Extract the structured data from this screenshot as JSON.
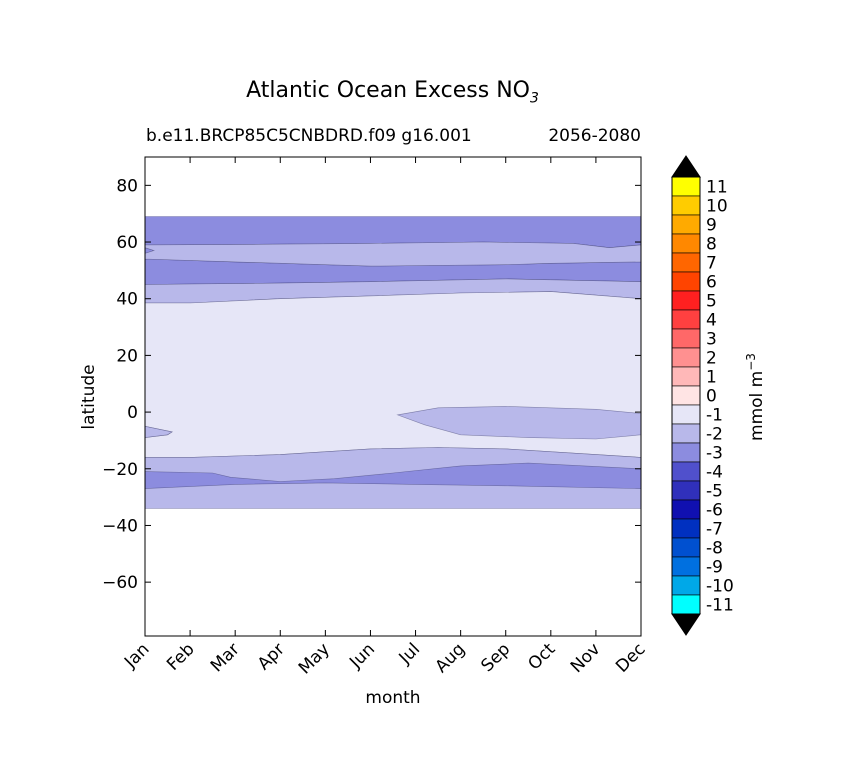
{
  "chart_data": {
    "type": "heatmap",
    "title": "Atlantic Ocean Excess NO",
    "title_subscript": "3",
    "subtitle_left": "b.e11.BRCP85C5CNBDRD.f09 g16.001",
    "subtitle_right": "2056-2080",
    "xlabel": "month",
    "ylabel": "latitude",
    "colorbar_label": "mmol m",
    "colorbar_label_superscript": "−3",
    "x_categories": [
      "Jan",
      "Feb",
      "Mar",
      "Apr",
      "May",
      "Jun",
      "Jul",
      "Aug",
      "Sep",
      "Oct",
      "Nov",
      "Dec"
    ],
    "y_ticks": [
      80,
      60,
      40,
      20,
      0,
      -20,
      -40,
      -60
    ],
    "y_tick_labels": [
      "80",
      "60",
      "40",
      "20",
      "0",
      "−20",
      "−40",
      "−60"
    ],
    "ylim": [
      -79,
      90
    ],
    "xlim": [
      0,
      11
    ],
    "data_extent_lat": [
      -34,
      69
    ],
    "colorbar_levels": [
      "11",
      "10",
      "9",
      "8",
      "7",
      "6",
      "5",
      "4",
      "3",
      "2",
      "1",
      "0",
      "-1",
      "-2",
      "-3",
      "-4",
      "-5",
      "-6",
      "-7",
      "-8",
      "-9",
      "-10",
      "-11"
    ],
    "colorbar_colors": [
      "#ffff00",
      "#ffcc00",
      "#ffaa00",
      "#ff8800",
      "#ff6600",
      "#ff4400",
      "#ff2020",
      "#ff4040",
      "#ff6868",
      "#ff9090",
      "#ffb8b8",
      "#ffe4e4",
      "#e6e6f7",
      "#b8b8ea",
      "#8c8cdf",
      "#5050cc",
      "#3030bb",
      "#1010b0",
      "#0030c0",
      "#0050d0",
      "#0070e0",
      "#00a8e8",
      "#00ffff"
    ],
    "contour_bands": [
      {
        "level": "-3",
        "polygon": [
          [
            0,
            69
          ],
          [
            11,
            69
          ],
          [
            11,
            59
          ],
          [
            10.3,
            58
          ],
          [
            9.5,
            59.5
          ],
          [
            7.5,
            60
          ],
          [
            5,
            59.5
          ],
          [
            2.5,
            59.2
          ],
          [
            0,
            59
          ],
          [
            0,
            58
          ],
          [
            0.2,
            57
          ],
          [
            0,
            56
          ],
          [
            0,
            54
          ],
          [
            2,
            53
          ],
          [
            4,
            52
          ],
          [
            5,
            51.5
          ],
          [
            8,
            52
          ],
          [
            9,
            52.5
          ],
          [
            11,
            53
          ],
          [
            11,
            46
          ],
          [
            8,
            47
          ],
          [
            5,
            46
          ],
          [
            3,
            45.5
          ],
          [
            0,
            45
          ]
        ]
      },
      {
        "level": "-2",
        "polygon": [
          [
            0,
            59
          ],
          [
            2.5,
            59.2
          ],
          [
            5,
            59.5
          ],
          [
            7.5,
            60
          ],
          [
            9.5,
            59.5
          ],
          [
            10.3,
            58
          ],
          [
            11,
            59
          ],
          [
            11,
            53
          ],
          [
            9,
            52.5
          ],
          [
            8,
            52
          ],
          [
            5,
            51.5
          ],
          [
            4,
            52
          ],
          [
            2,
            53
          ],
          [
            0,
            54
          ],
          [
            0,
            56
          ],
          [
            0.2,
            57
          ],
          [
            0,
            58
          ],
          [
            0,
            45
          ],
          [
            3,
            45.5
          ],
          [
            5,
            46
          ],
          [
            8,
            47
          ],
          [
            11,
            46
          ],
          [
            11,
            40
          ],
          [
            9,
            42.5
          ],
          [
            7,
            42
          ],
          [
            5,
            41
          ],
          [
            3,
            40
          ],
          [
            1,
            38.5
          ],
          [
            0,
            38.5
          ]
        ]
      },
      {
        "level": "-1",
        "polygon": [
          [
            0,
            38.5
          ],
          [
            1,
            38.5
          ],
          [
            3,
            40
          ],
          [
            5,
            41
          ],
          [
            7,
            42
          ],
          [
            9,
            42.5
          ],
          [
            11,
            40
          ],
          [
            11,
            -16
          ],
          [
            8,
            -13
          ],
          [
            6.5,
            -12.5
          ],
          [
            5,
            -13
          ],
          [
            3,
            -15
          ],
          [
            1,
            -16
          ],
          [
            0,
            -16
          ],
          [
            0,
            -5
          ],
          [
            0.6,
            -7
          ],
          [
            0.5,
            -8
          ],
          [
            0,
            -9
          ]
        ]
      },
      {
        "level": "-2",
        "polygon": [
          [
            5.6,
            -1
          ],
          [
            6.2,
            -4.5
          ],
          [
            7,
            -8
          ],
          [
            8.5,
            -9
          ],
          [
            10,
            -9.5
          ],
          [
            11,
            -8
          ],
          [
            11,
            -0.5
          ],
          [
            10,
            1
          ],
          [
            8,
            2
          ],
          [
            6.5,
            1.5
          ]
        ]
      },
      {
        "level": "-2",
        "polygon": [
          [
            0,
            -5
          ],
          [
            0.6,
            -7
          ],
          [
            0.5,
            -8
          ],
          [
            0,
            -9
          ]
        ]
      },
      {
        "level": "-2",
        "polygon": [
          [
            0,
            -16
          ],
          [
            1,
            -16
          ],
          [
            3,
            -15
          ],
          [
            5,
            -13
          ],
          [
            6.5,
            -12.5
          ],
          [
            8,
            -13
          ],
          [
            11,
            -16
          ],
          [
            11,
            -34
          ],
          [
            0,
            -34
          ]
        ]
      },
      {
        "level": "-3",
        "polygon": [
          [
            0,
            -21
          ],
          [
            1.5,
            -21.5
          ],
          [
            1.9,
            -23
          ],
          [
            3,
            -24.5
          ],
          [
            4.2,
            -23.5
          ],
          [
            5.5,
            -21.5
          ],
          [
            7,
            -19
          ],
          [
            8.5,
            -18
          ],
          [
            11,
            -20
          ],
          [
            11,
            -27
          ],
          [
            8,
            -26
          ],
          [
            6,
            -25.5
          ],
          [
            4,
            -25
          ],
          [
            2,
            -25.5
          ],
          [
            0,
            -27
          ]
        ]
      }
    ]
  }
}
